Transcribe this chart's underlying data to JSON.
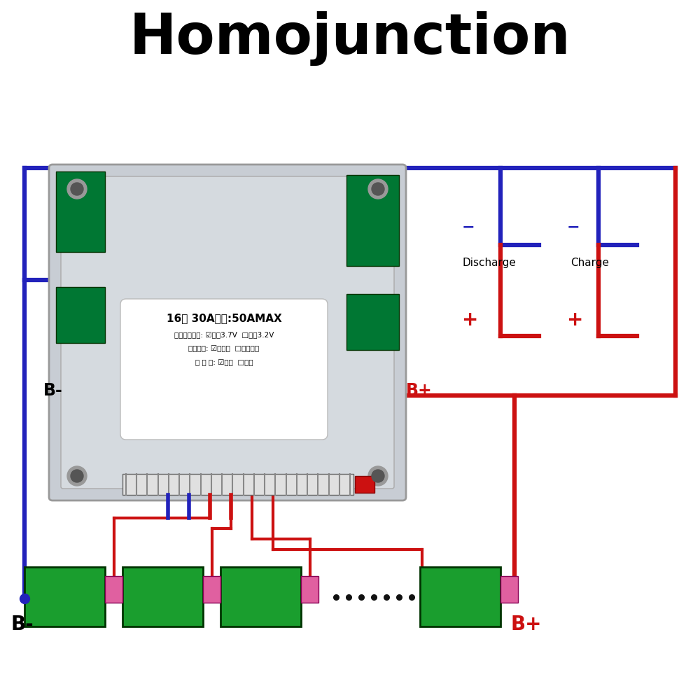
{
  "title": "Homojunction",
  "title_fontsize": 58,
  "title_fontweight": "bold",
  "bg_color": "#ffffff",
  "pcb_metal_color": "#c8cdd4",
  "pcb_border": "#999999",
  "green_pcb": "#1a8c2e",
  "green_cell": "#1a9e2e",
  "pink_color": "#e060a0",
  "red_color": "#cc1111",
  "blue_color": "#2222bb",
  "black": "#000000",
  "wire_lw": 3.5,
  "label_Bminus": "B-",
  "label_Bplus": "B+",
  "label_Discharge": "Discharge",
  "label_Charge": "Charge"
}
